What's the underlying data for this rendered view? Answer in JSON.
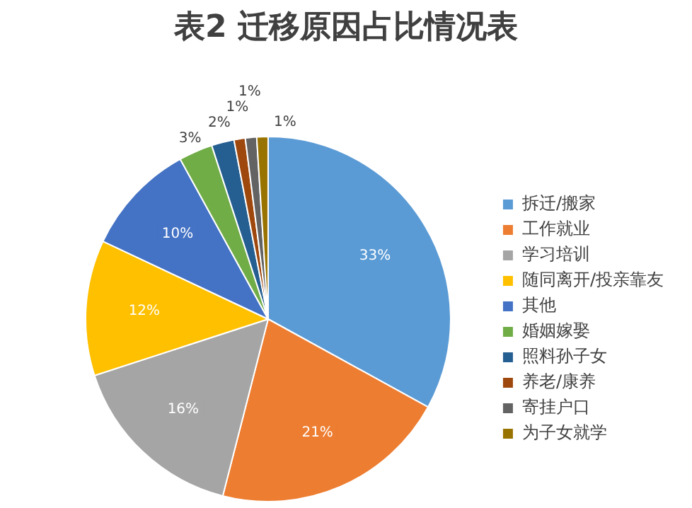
{
  "chart_data": {
    "type": "pie",
    "title": "表2  迁移原因占比情况表",
    "categories": [
      "拆迁/搬家",
      "工作就业",
      "学习培训",
      "随同离开/投亲靠友",
      "其他",
      "婚姻嫁娶",
      "照料孙子女",
      "养老/康养",
      "寄挂户口",
      "为子女就学"
    ],
    "values": [
      33,
      21,
      16,
      12,
      10,
      3,
      2,
      1,
      1,
      1
    ],
    "colors": [
      "#5b9bd5",
      "#ed7d31",
      "#a5a5a5",
      "#ffc000",
      "#4472c4",
      "#70ad47",
      "#255e91",
      "#9e480e",
      "#636363",
      "#997300"
    ],
    "value_labels": [
      "33%",
      "21%",
      "16%",
      "12%",
      "10%",
      "3%",
      "2%",
      "1%",
      "1%",
      "1%"
    ],
    "legend": "right"
  }
}
